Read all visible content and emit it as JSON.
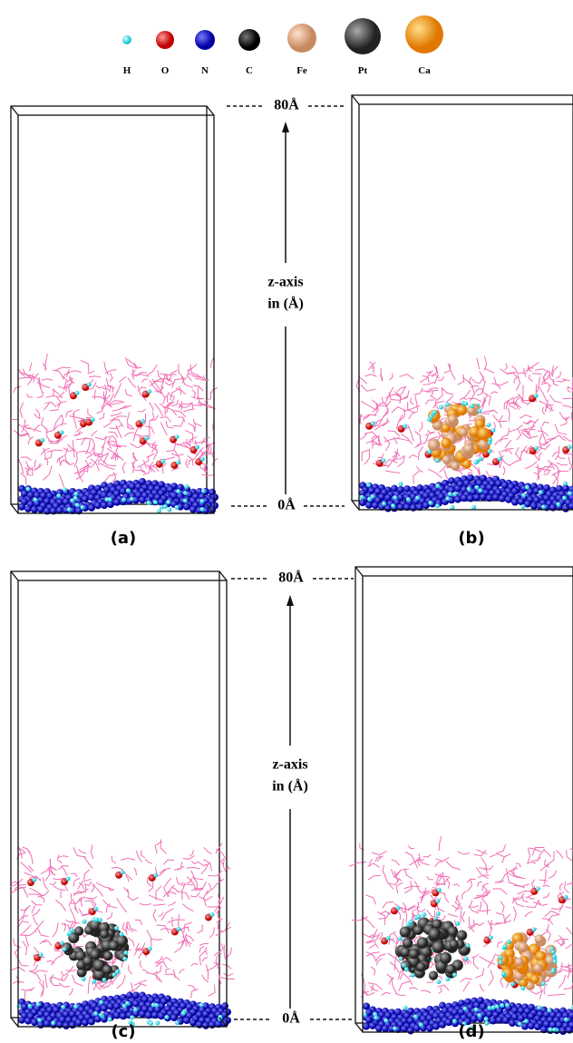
{
  "legend": {
    "items": [
      {
        "label": "H"
      },
      {
        "label": "O"
      },
      {
        "label": "N"
      },
      {
        "label": "C"
      },
      {
        "label": "Fe"
      },
      {
        "label": "Pt"
      },
      {
        "label": "Ca"
      }
    ]
  },
  "axes": [
    {
      "top": "80Å",
      "bottom": "0Å",
      "title": [
        "z-axis",
        "in (Å)"
      ]
    },
    {
      "top": "80Å",
      "bottom": "0Å",
      "title": [
        "z-axis",
        "in (Å)"
      ]
    }
  ],
  "panels": [
    {
      "label": "(a)"
    },
    {
      "label": "(b)"
    },
    {
      "label": "(c)"
    },
    {
      "label": "(d)"
    }
  ]
}
